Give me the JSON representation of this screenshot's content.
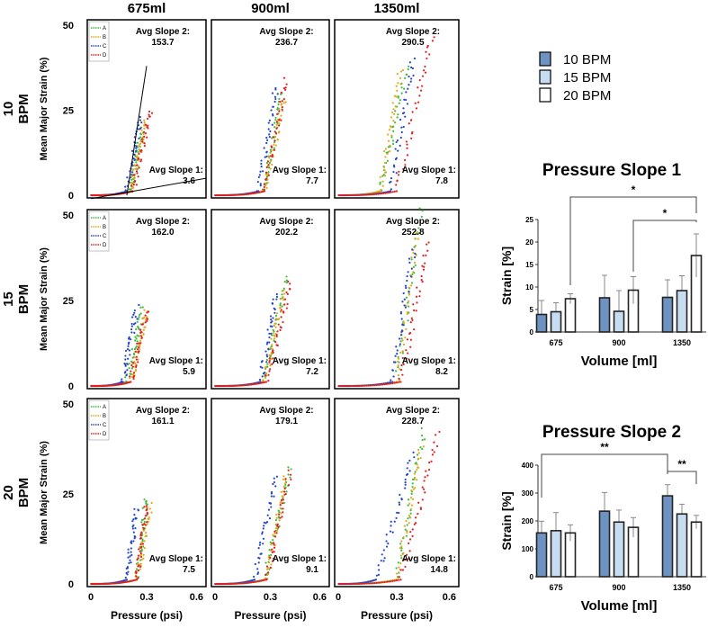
{
  "chart_data": [
    {
      "type": "scatter",
      "columns": [
        "675ml",
        "900ml",
        "1350ml"
      ],
      "rows": [
        {
          "l1": "10",
          "l2": "BPM"
        },
        {
          "l1": "15",
          "l2": "BPM"
        },
        {
          "l1": "20",
          "l2": "BPM"
        }
      ],
      "ylabel": "Mean Major Strain (%)",
      "xlabel": "Pressure (psi)",
      "xlim": [
        0,
        0.6
      ],
      "ylim": [
        0,
        50
      ],
      "xticks": [
        "0",
        "0.3",
        "0.6"
      ],
      "yticks": [
        "0",
        "25",
        "50"
      ],
      "legend": [
        "A",
        "B",
        "C",
        "D"
      ],
      "colors": {
        "A": "#3dbb3d",
        "B": "#e3a81c",
        "C": "#2346c8",
        "D": "#e02020"
      },
      "slope2_label": "Avg Slope 2:",
      "slope1_label": "Avg Slope 1:",
      "panels": [
        {
          "slope2": "153.7",
          "slope1": "3.6",
          "traces": [
            [
              0.22,
              0.28,
              20
            ],
            [
              0.22,
              0.3,
              22
            ],
            [
              0.2,
              0.27,
              23
            ],
            [
              0.23,
              0.32,
              25
            ]
          ]
        },
        {
          "slope2": "236.7",
          "slope1": "7.7",
          "traces": [
            [
              0.27,
              0.36,
              30
            ],
            [
              0.27,
              0.37,
              28
            ],
            [
              0.24,
              0.33,
              32
            ],
            [
              0.27,
              0.38,
              34
            ]
          ]
        },
        {
          "slope2": "290.5",
          "slope1": "7.8",
          "traces": [
            [
              0.22,
              0.35,
              38
            ],
            [
              0.22,
              0.32,
              37
            ],
            [
              0.27,
              0.38,
              40
            ],
            [
              0.3,
              0.47,
              47
            ]
          ]
        },
        {
          "slope2": "162.0",
          "slope1": "5.9",
          "traces": [
            [
              0.2,
              0.28,
              23
            ],
            [
              0.22,
              0.3,
              22
            ],
            [
              0.18,
              0.25,
              23
            ],
            [
              0.22,
              0.3,
              22
            ]
          ]
        },
        {
          "slope2": "202.2",
          "slope1": "7.2",
          "traces": [
            [
              0.27,
              0.38,
              32
            ],
            [
              0.27,
              0.37,
              28
            ],
            [
              0.25,
              0.33,
              27
            ],
            [
              0.28,
              0.4,
              30
            ]
          ]
        },
        {
          "slope2": "252.8",
          "slope1": "8.2",
          "traces": [
            [
              0.3,
              0.42,
              52
            ],
            [
              0.3,
              0.4,
              45
            ],
            [
              0.28,
              0.38,
              40
            ],
            [
              0.32,
              0.45,
              42
            ]
          ]
        },
        {
          "slope2": "161.1",
          "slope1": "7.5",
          "traces": [
            [
              0.25,
              0.3,
              24
            ],
            [
              0.25,
              0.32,
              22
            ],
            [
              0.2,
              0.25,
              21
            ],
            [
              0.25,
              0.3,
              22
            ]
          ]
        },
        {
          "slope2": "179.1",
          "slope1": "9.1",
          "traces": [
            [
              0.27,
              0.4,
              32
            ],
            [
              0.28,
              0.38,
              30
            ],
            [
              0.22,
              0.33,
              30
            ],
            [
              0.28,
              0.4,
              31
            ]
          ]
        },
        {
          "slope2": "228.7",
          "slope1": "14.8",
          "traces": [
            [
              0.3,
              0.43,
              43
            ],
            [
              0.3,
              0.42,
              38
            ],
            [
              0.2,
              0.38,
              36
            ],
            [
              0.32,
              0.5,
              42
            ]
          ]
        }
      ]
    },
    {
      "type": "bar",
      "title": "Pressure Slope 1",
      "xlabel": "Volume [ml]",
      "ylabel": "Strain [%]",
      "ylim": [
        0,
        25
      ],
      "yticks": [
        "0",
        "5",
        "10",
        "15",
        "20",
        "25"
      ],
      "categories": [
        "675",
        "900",
        "1350"
      ],
      "series": [
        {
          "name": "10 BPM",
          "values": [
            3.9,
            7.6,
            7.7
          ],
          "err_upper": [
            7.0,
            12.6,
            11.6
          ]
        },
        {
          "name": "15 BPM",
          "values": [
            4.5,
            4.6,
            9.2
          ],
          "err_upper": [
            6.5,
            9.2,
            12.5
          ]
        },
        {
          "name": "20 BPM",
          "values": [
            7.4,
            9.3,
            17.0
          ],
          "err_upper": [
            8.5,
            12.3,
            21.8
          ]
        }
      ],
      "significance": [
        {
          "from": [
            0,
            2
          ],
          "to": [
            2,
            2
          ],
          "label": "*"
        },
        {
          "from": [
            1,
            2
          ],
          "to": [
            2,
            2
          ],
          "label": "*"
        }
      ]
    },
    {
      "type": "bar",
      "title": "Pressure Slope 2",
      "xlabel": "Volume [ml]",
      "ylabel": "Strain [%]",
      "ylim": [
        0,
        400
      ],
      "yticks": [
        "0",
        "100",
        "200",
        "300",
        "400"
      ],
      "categories": [
        "675",
        "900",
        "1350"
      ],
      "series": [
        {
          "name": "10 BPM",
          "values": [
            157,
            235,
            290
          ],
          "err_upper": [
            199,
            302,
            330
          ]
        },
        {
          "name": "15 BPM",
          "values": [
            165,
            196,
            225
          ],
          "err_upper": [
            230,
            239,
            260
          ]
        },
        {
          "name": "20 BPM",
          "values": [
            157,
            177,
            196
          ],
          "err_upper": [
            186,
            212,
            220
          ]
        }
      ],
      "significance": [
        {
          "from": [
            0,
            0
          ],
          "to": [
            2,
            0
          ],
          "label": "**"
        },
        {
          "from": [
            2,
            0
          ],
          "to": [
            2,
            2
          ],
          "label": "**"
        }
      ]
    }
  ],
  "legend": {
    "items": [
      {
        "label": "10 BPM",
        "color": "#6e93c2"
      },
      {
        "label": "15 BPM",
        "color": "#c6dcf0"
      },
      {
        "label": "20 BPM",
        "color": "#ffffff"
      }
    ]
  }
}
